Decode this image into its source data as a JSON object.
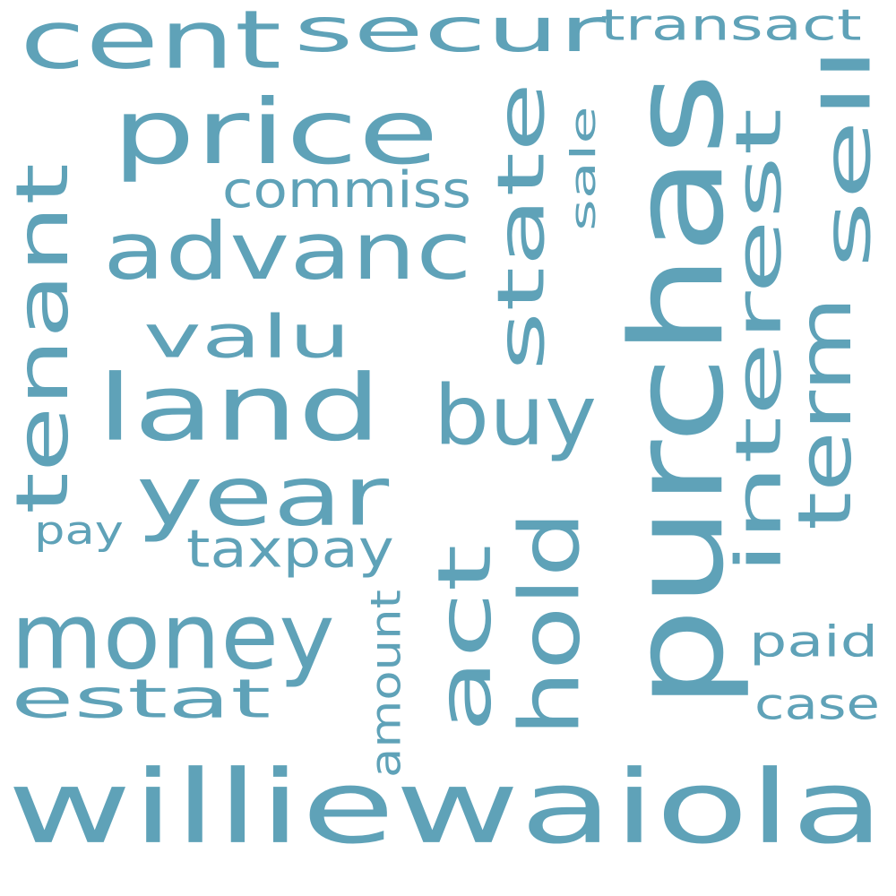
{
  "color": "#5fa2b8",
  "background": "#ffffff",
  "words": [
    {
      "id": "williewaiola",
      "text": "williewaiola",
      "rotated": false
    },
    {
      "id": "purchas",
      "text": "purchas",
      "rotated": true
    },
    {
      "id": "land",
      "text": "land",
      "rotated": false
    },
    {
      "id": "money",
      "text": "money",
      "rotated": false
    },
    {
      "id": "year",
      "text": "year",
      "rotated": false
    },
    {
      "id": "advanc",
      "text": "advanc",
      "rotated": false
    },
    {
      "id": "price",
      "text": "price",
      "rotated": false
    },
    {
      "id": "tenant",
      "text": "tenant",
      "rotated": true
    },
    {
      "id": "secur",
      "text": "secur",
      "rotated": false
    },
    {
      "id": "cent",
      "text": "cent",
      "rotated": false
    },
    {
      "id": "estat",
      "text": "estat",
      "rotated": false
    },
    {
      "id": "state",
      "text": "state",
      "rotated": true
    },
    {
      "id": "hold",
      "text": "hold",
      "rotated": true
    },
    {
      "id": "act",
      "text": "act",
      "rotated": true
    },
    {
      "id": "buy",
      "text": "buy",
      "rotated": false
    },
    {
      "id": "interest",
      "text": "interest",
      "rotated": true
    },
    {
      "id": "term",
      "text": "term",
      "rotated": true
    },
    {
      "id": "sell",
      "text": "sell",
      "rotated": true
    },
    {
      "id": "valu",
      "text": "valu",
      "rotated": false
    },
    {
      "id": "taxpay",
      "text": "taxpay",
      "rotated": false
    },
    {
      "id": "commiss",
      "text": "commiss",
      "rotated": false
    },
    {
      "id": "transact",
      "text": "transact",
      "rotated": false
    },
    {
      "id": "paid",
      "text": "paid",
      "rotated": false
    },
    {
      "id": "case",
      "text": "case",
      "rotated": false
    },
    {
      "id": "pay",
      "text": "pay",
      "rotated": false
    },
    {
      "id": "amount",
      "text": "amount",
      "rotated": true
    },
    {
      "id": "sale",
      "text": "sale",
      "rotated": true
    }
  ]
}
